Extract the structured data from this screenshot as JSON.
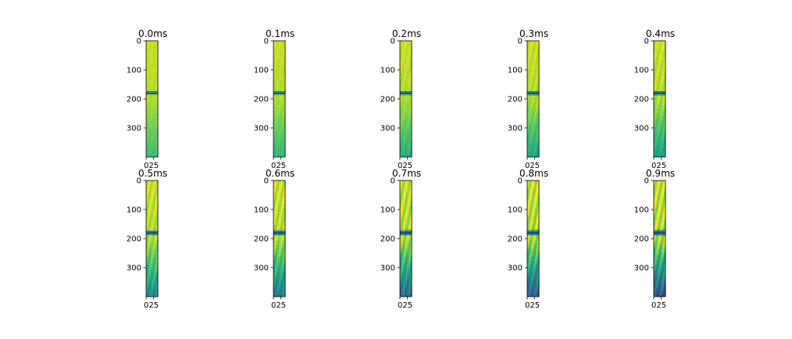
{
  "chart_data": {
    "type": "heatmap",
    "layout": "grid 2 rows x 5 columns",
    "colormap": "viridis",
    "grid": false,
    "panels": [
      {
        "title": "0.0ms",
        "band_center": 180,
        "band_strength": 1.0,
        "streaks": 0.05,
        "lower_fade": 0.15
      },
      {
        "title": "0.1ms",
        "band_center": 180,
        "band_strength": 1.0,
        "streaks": 0.08,
        "lower_fade": 0.18
      },
      {
        "title": "0.2ms",
        "band_center": 180,
        "band_strength": 1.0,
        "streaks": 0.12,
        "lower_fade": 0.22
      },
      {
        "title": "0.3ms",
        "band_center": 180,
        "band_strength": 1.0,
        "streaks": 0.18,
        "lower_fade": 0.25
      },
      {
        "title": "0.4ms",
        "band_center": 180,
        "band_strength": 1.0,
        "streaks": 0.22,
        "lower_fade": 0.28
      },
      {
        "title": "0.5ms",
        "band_center": 180,
        "band_strength": 1.0,
        "streaks": 0.28,
        "lower_fade": 0.35
      },
      {
        "title": "0.6ms",
        "band_center": 180,
        "band_strength": 1.0,
        "streaks": 0.34,
        "lower_fade": 0.42
      },
      {
        "title": "0.7ms",
        "band_center": 180,
        "band_strength": 1.0,
        "streaks": 0.4,
        "lower_fade": 0.48
      },
      {
        "title": "0.8ms",
        "band_center": 180,
        "band_strength": 1.0,
        "streaks": 0.46,
        "lower_fade": 0.55
      },
      {
        "title": "0.9ms",
        "band_center": 180,
        "band_strength": 1.0,
        "streaks": 0.52,
        "lower_fade": 0.6
      }
    ],
    "y_ticks": [
      0,
      100,
      200,
      300
    ],
    "x_ticks": [
      0,
      25
    ],
    "x_tick_label_text": "025",
    "ylim": [
      400,
      0
    ],
    "xlim": [
      0,
      40
    ]
  }
}
